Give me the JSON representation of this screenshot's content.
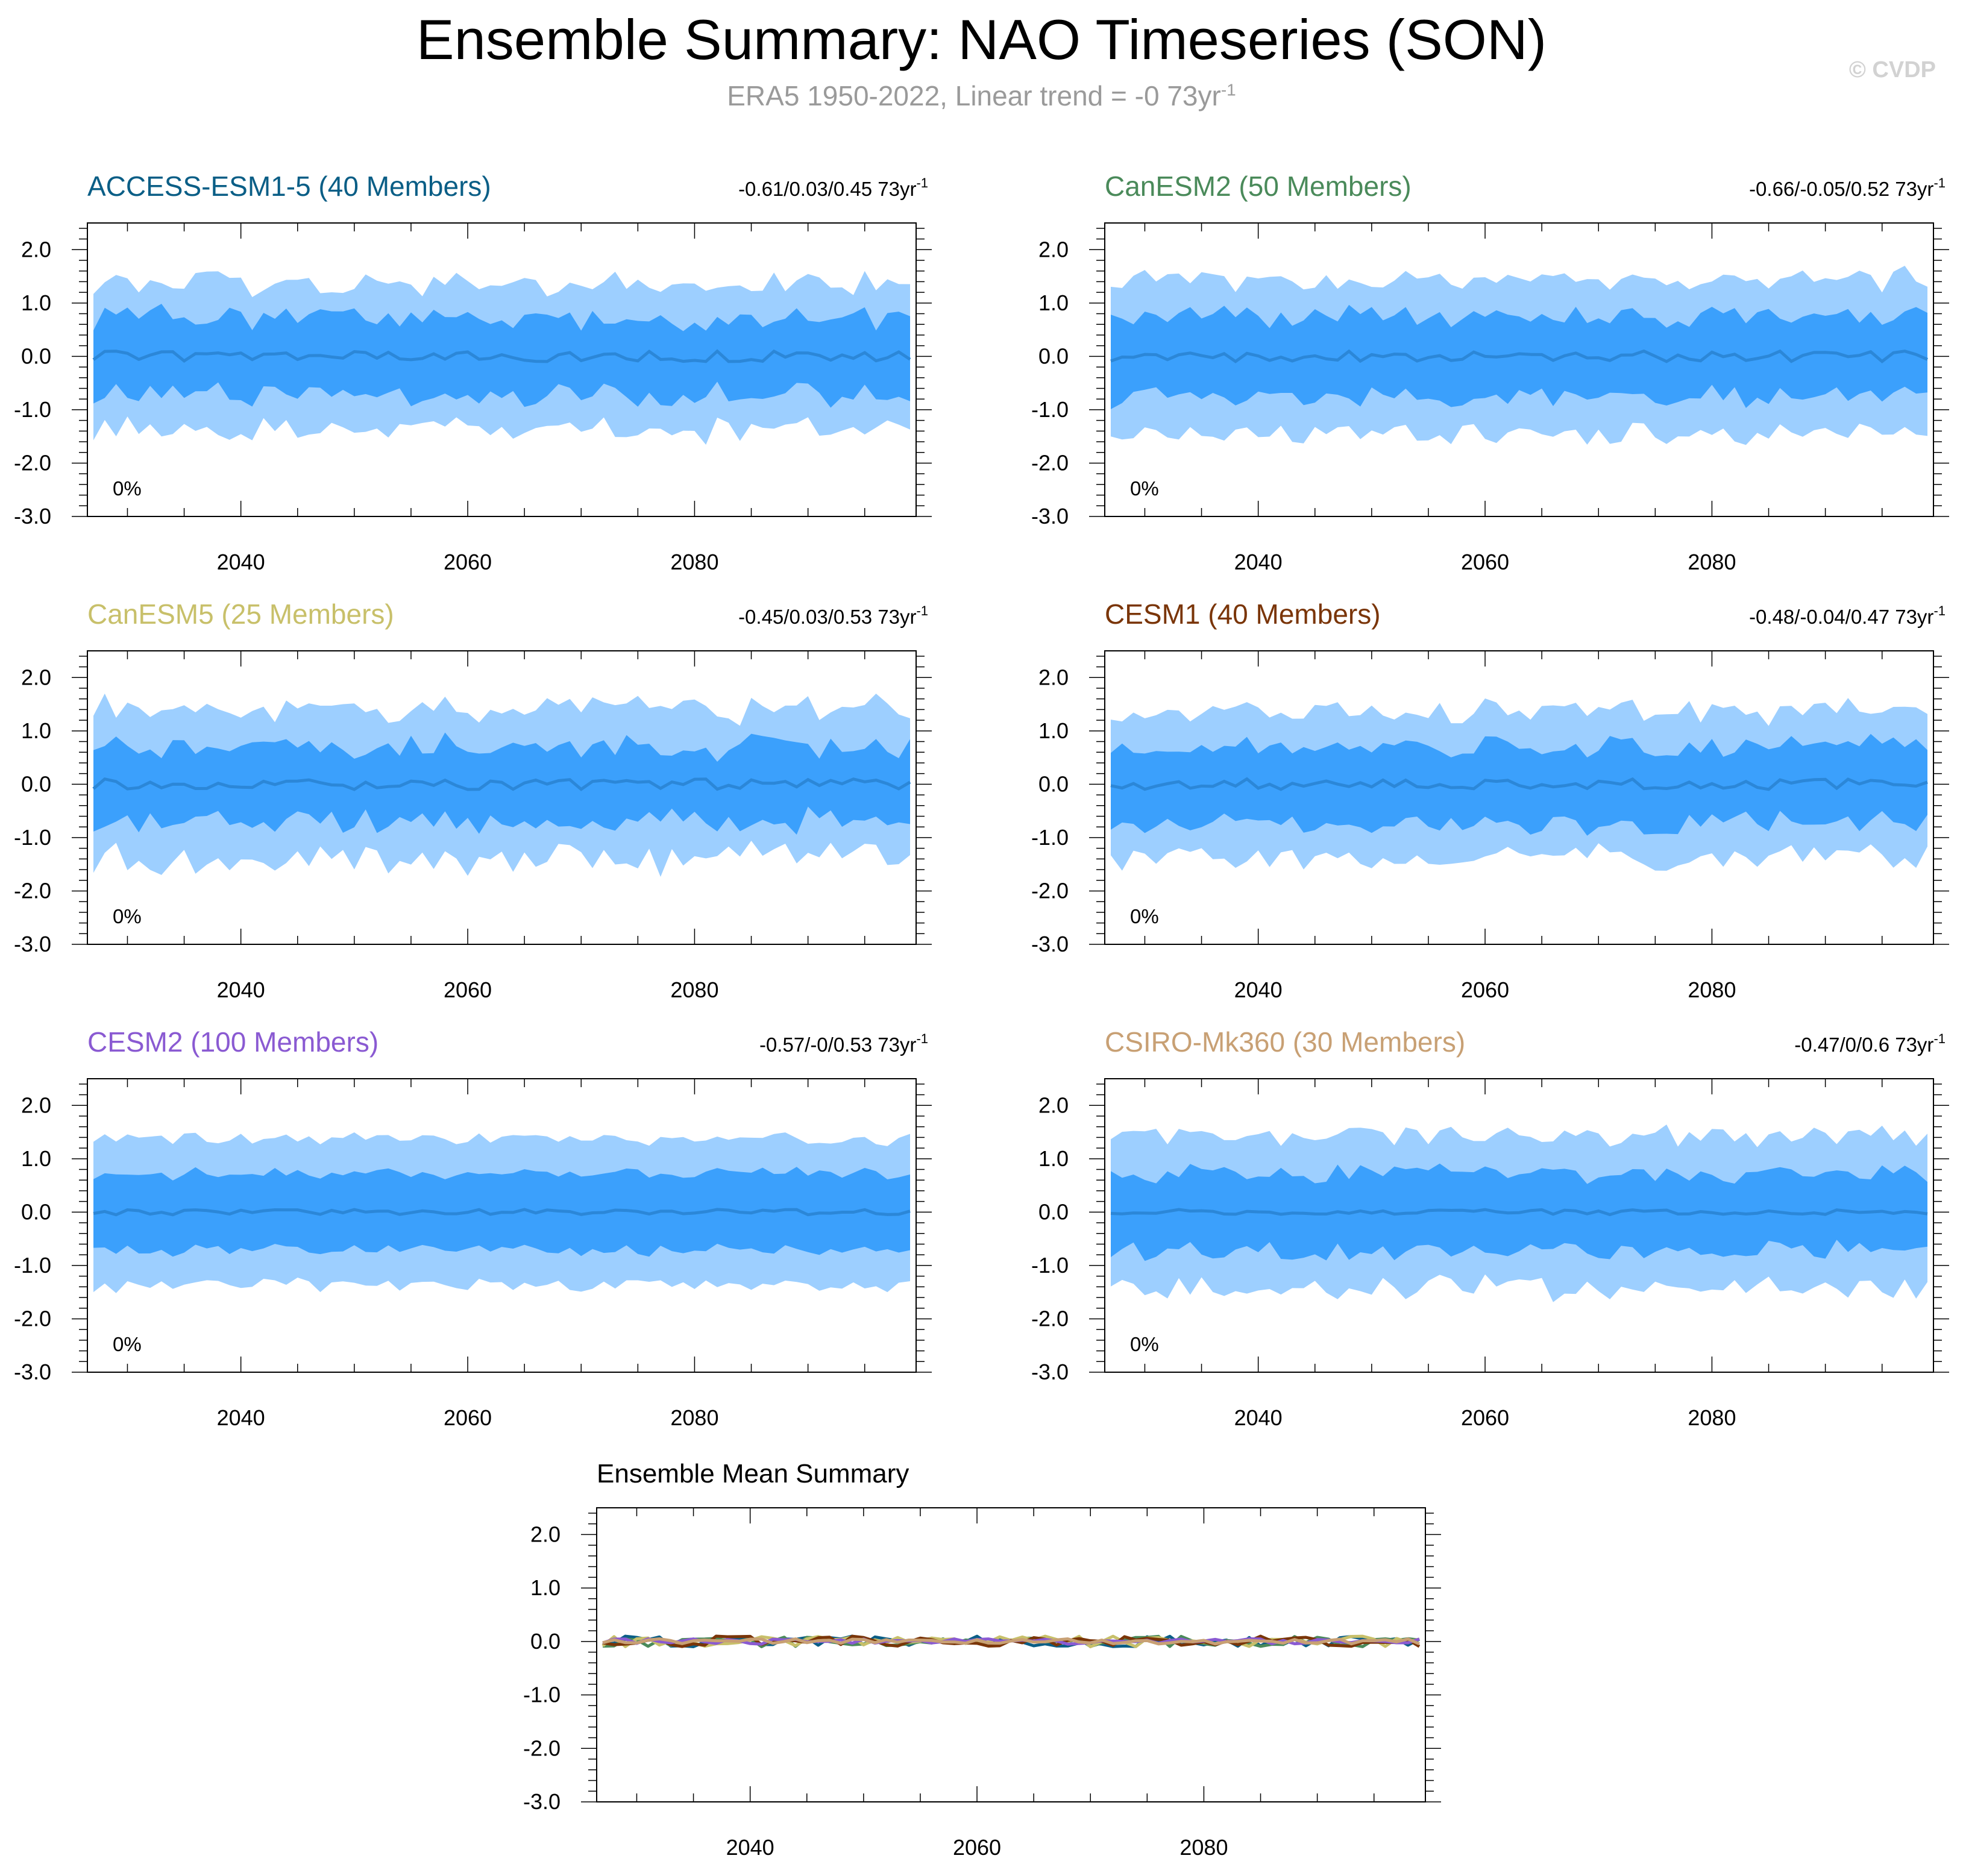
{
  "header": {
    "title": "Ensemble Summary: NAO Timeseries (SON)",
    "subtitle": "ERA5 1950-2022, Linear trend = -0 73yr",
    "subtitle_sup": "-1",
    "watermark": "© CVDP"
  },
  "chart_data": [
    {
      "type": "area",
      "title": "ACCESS-ESM1-5 (40 Members)",
      "title_color": "#0a5e86",
      "stat": "-0.61/0.03/0.45 73yr",
      "stat_sup": "-1",
      "percent_label": "0%",
      "x_start": 2027,
      "x_end": 2099,
      "ylim": [
        -3.0,
        2.5
      ],
      "yticks": [
        2.0,
        1.0,
        0.0,
        -1.0,
        -2.0,
        -3.0
      ],
      "ytick_labels": [
        "2.0",
        "1.0",
        "0.0",
        "-1.0",
        "-2.0",
        "-3.0"
      ],
      "xticks": [
        2040,
        2060,
        2080
      ],
      "xtick_labels": [
        "2040",
        "2060",
        "2080"
      ],
      "seed": 11,
      "outer": 1.32,
      "inner": 0.72,
      "mean_amp": 0.1,
      "spread": 0.33
    },
    {
      "type": "area",
      "title": "CanESM2 (50 Members)",
      "title_color": "#4a8a5a",
      "stat": "-0.66/-0.05/0.52 73yr",
      "stat_sup": "-1",
      "percent_label": "0%",
      "x_start": 2027,
      "x_end": 2099,
      "ylim": [
        -3.0,
        2.5
      ],
      "yticks": [
        2.0,
        1.0,
        0.0,
        -1.0,
        -2.0,
        -3.0
      ],
      "ytick_labels": [
        "2.0",
        "1.0",
        "0.0",
        "-1.0",
        "-2.0",
        "-3.0"
      ],
      "xticks": [
        2040,
        2060,
        2080
      ],
      "xtick_labels": [
        "2040",
        "2060",
        "2080"
      ],
      "seed": 23,
      "outer": 1.4,
      "inner": 0.75,
      "mean_amp": 0.1,
      "spread": 0.28
    },
    {
      "type": "area",
      "title": "CanESM5 (25 Members)",
      "title_color": "#c8c06a",
      "stat": "-0.45/0.03/0.53 73yr",
      "stat_sup": "-1",
      "percent_label": "0%",
      "x_start": 2027,
      "x_end": 2099,
      "ylim": [
        -3.0,
        2.5
      ],
      "yticks": [
        2.0,
        1.0,
        0.0,
        -1.0,
        -2.0,
        -3.0
      ],
      "ytick_labels": [
        "2.0",
        "1.0",
        "0.0",
        "-1.0",
        "-2.0",
        "-3.0"
      ],
      "xticks": [
        2040,
        2060,
        2080
      ],
      "xtick_labels": [
        "2040",
        "2060",
        "2080"
      ],
      "seed": 37,
      "outer": 1.35,
      "inner": 0.7,
      "mean_amp": 0.1,
      "spread": 0.38
    },
    {
      "type": "area",
      "title": "CESM1 (40 Members)",
      "title_color": "#7a3508",
      "stat": "-0.48/-0.04/0.47 73yr",
      "stat_sup": "-1",
      "percent_label": "0%",
      "x_start": 2027,
      "x_end": 2099,
      "ylim": [
        -3.0,
        2.5
      ],
      "yticks": [
        2.0,
        1.0,
        0.0,
        -1.0,
        -2.0,
        -3.0
      ],
      "ytick_labels": [
        "2.0",
        "1.0",
        "0.0",
        "-1.0",
        "-2.0",
        "-3.0"
      ],
      "xticks": [
        2040,
        2060,
        2080
      ],
      "xtick_labels": [
        "2040",
        "2060",
        "2080"
      ],
      "seed": 41,
      "outer": 1.32,
      "inner": 0.72,
      "mean_amp": 0.1,
      "spread": 0.3
    },
    {
      "type": "area",
      "title": "CESM2 (100 Members)",
      "title_color": "#8a5ad2",
      "stat": "-0.57/-0/0.53 73yr",
      "stat_sup": "-1",
      "percent_label": "0%",
      "x_start": 2027,
      "x_end": 2099,
      "ylim": [
        -3.0,
        2.5
      ],
      "yticks": [
        2.0,
        1.0,
        0.0,
        -1.0,
        -2.0,
        -3.0
      ],
      "ytick_labels": [
        "2.0",
        "1.0",
        "0.0",
        "-1.0",
        "-2.0",
        "-3.0"
      ],
      "xticks": [
        2040,
        2060,
        2080
      ],
      "xtick_labels": [
        "2040",
        "2060",
        "2080"
      ],
      "seed": 53,
      "outer": 1.35,
      "inner": 0.72,
      "mean_amp": 0.05,
      "spread": 0.15
    },
    {
      "type": "area",
      "title": "CSIRO-Mk360 (30 Members)",
      "title_color": "#c8a074",
      "stat": "-0.47/0/0.6 73yr",
      "stat_sup": "-1",
      "percent_label": "0%",
      "x_start": 2027,
      "x_end": 2099,
      "ylim": [
        -3.0,
        2.5
      ],
      "yticks": [
        2.0,
        1.0,
        0.0,
        -1.0,
        -2.0,
        -3.0
      ],
      "ytick_labels": [
        "2.0",
        "1.0",
        "0.0",
        "-1.0",
        "-2.0",
        "-3.0"
      ],
      "xticks": [
        2040,
        2060,
        2080
      ],
      "xtick_labels": [
        "2040",
        "2060",
        "2080"
      ],
      "seed": 67,
      "outer": 1.38,
      "inner": 0.72,
      "mean_amp": 0.05,
      "spread": 0.32
    },
    {
      "type": "line",
      "title": "Ensemble Mean Summary",
      "title_color": "#000000",
      "x_start": 2027,
      "x_end": 2099,
      "ylim": [
        -3.0,
        2.5
      ],
      "yticks": [
        2.0,
        1.0,
        0.0,
        -1.0,
        -2.0,
        -3.0
      ],
      "ytick_labels": [
        "2.0",
        "1.0",
        "0.0",
        "-1.0",
        "-2.0",
        "-3.0"
      ],
      "xticks": [
        2040,
        2060,
        2080
      ],
      "xtick_labels": [
        "2040",
        "2060",
        "2080"
      ],
      "series": [
        {
          "name": "ACCESS-ESM1-5",
          "color": "#0a5e86",
          "seed": 11,
          "amp": 0.1
        },
        {
          "name": "CanESM2",
          "color": "#4a8a5a",
          "seed": 23,
          "amp": 0.1
        },
        {
          "name": "CanESM5",
          "color": "#c8c06a",
          "seed": 37,
          "amp": 0.1
        },
        {
          "name": "CESM1",
          "color": "#7a3508",
          "seed": 41,
          "amp": 0.1
        },
        {
          "name": "CESM2",
          "color": "#8a5ad2",
          "seed": 53,
          "amp": 0.05
        },
        {
          "name": "CSIRO-Mk360",
          "color": "#c8a074",
          "seed": 67,
          "amp": 0.05
        }
      ]
    }
  ],
  "colors": {
    "outer_band": "#9dcfff",
    "inner_band": "#3ba0fc",
    "mean_line": "#2b87d8"
  }
}
